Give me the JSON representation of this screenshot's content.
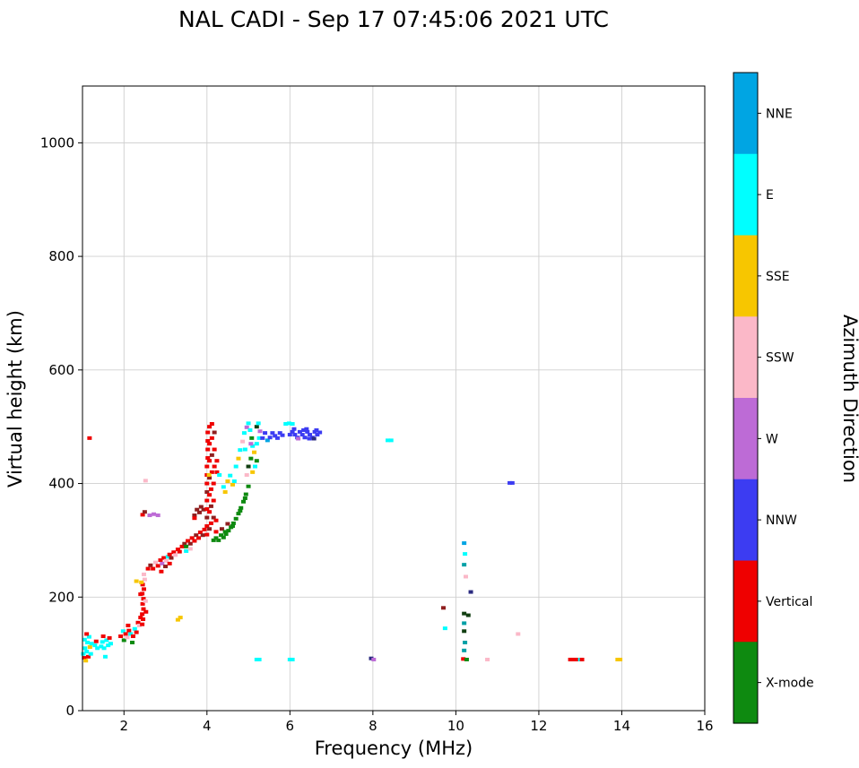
{
  "chart_data": {
    "type": "scatter",
    "title": "NAL CADI - Sep 17 07:45:06 2021 UTC",
    "xlabel": "Frequency (MHz)",
    "ylabel": "Virtual height (km)",
    "xlim": [
      1,
      16
    ],
    "ylim": [
      0,
      1100
    ],
    "xticks": [
      2,
      4,
      6,
      8,
      10,
      12,
      14,
      16
    ],
    "yticks": [
      0,
      200,
      400,
      600,
      800,
      1000
    ],
    "grid": true,
    "background": "#ffffff",
    "palette": {
      "NNE": "#00A5E3",
      "E": "#00FFFF",
      "SSE": "#F7C600",
      "SSW": "#FBB8C8",
      "W": "#BD6BD6",
      "NNW": "#3C3CF2",
      "Vertical": "#EF0000",
      "X-mode": "#0E8A10",
      "dark-red": "#8F1F1F",
      "dark-green": "#123F12",
      "teal": "#00A0A6",
      "indigo": "#2B2B80"
    },
    "legend": {
      "label": "Azimuth Direction",
      "position": "right-colorbar",
      "entries": [
        {
          "label": "NNE",
          "key": "NNE"
        },
        {
          "label": "E",
          "key": "E"
        },
        {
          "label": "SSE",
          "key": "SSE"
        },
        {
          "label": "SSW",
          "key": "SSW"
        },
        {
          "label": "W",
          "key": "W"
        },
        {
          "label": "NNW",
          "key": "NNW"
        },
        {
          "label": "Vertical",
          "key": "Vertical"
        },
        {
          "label": "X-mode",
          "key": "X-mode"
        }
      ]
    },
    "points_format": [
      "frequency_MHz",
      "virtual_height_km",
      "palette_key"
    ],
    "points": [
      [
        1.02,
        100,
        "E"
      ],
      [
        1.04,
        93,
        "Vertical"
      ],
      [
        1.06,
        110,
        "E"
      ],
      [
        1.08,
        88,
        "SSE"
      ],
      [
        1.1,
        104,
        "E"
      ],
      [
        1.12,
        120,
        "E"
      ],
      [
        1.14,
        95,
        "Vertical"
      ],
      [
        1.16,
        130,
        "E"
      ],
      [
        1.18,
        112,
        "SSE"
      ],
      [
        1.2,
        100,
        "E"
      ],
      [
        1.1,
        135,
        "Vertical"
      ],
      [
        1.22,
        118,
        "E"
      ],
      [
        1.05,
        125,
        "E"
      ],
      [
        1.17,
        480,
        "Vertical"
      ],
      [
        1.3,
        115,
        "E"
      ],
      [
        1.33,
        122,
        "Vertical"
      ],
      [
        1.36,
        110,
        "E"
      ],
      [
        1.45,
        113,
        "E"
      ],
      [
        1.48,
        121,
        "E"
      ],
      [
        1.52,
        110,
        "E"
      ],
      [
        1.5,
        131,
        "Vertical"
      ],
      [
        1.58,
        124,
        "E"
      ],
      [
        1.62,
        115,
        "E"
      ],
      [
        1.55,
        95,
        "E"
      ],
      [
        1.65,
        128,
        "Vertical"
      ],
      [
        1.68,
        118,
        "E"
      ],
      [
        1.92,
        131,
        "Vertical"
      ],
      [
        1.98,
        140,
        "E"
      ],
      [
        2.0,
        124,
        "X-mode"
      ],
      [
        2.04,
        135,
        "Vertical"
      ],
      [
        2.08,
        129,
        "SSW"
      ],
      [
        2.12,
        141,
        "Vertical"
      ],
      [
        2.16,
        135,
        "E"
      ],
      [
        2.1,
        150,
        "Vertical"
      ],
      [
        2.22,
        131,
        "Vertical"
      ],
      [
        2.26,
        144,
        "E"
      ],
      [
        2.2,
        120,
        "X-mode"
      ],
      [
        2.3,
        138,
        "Vertical"
      ],
      [
        2.34,
        155,
        "Vertical"
      ],
      [
        2.4,
        164,
        "Vertical"
      ],
      [
        2.37,
        150,
        "SSW"
      ],
      [
        2.3,
        228,
        "SSE"
      ],
      [
        2.44,
        152,
        "Vertical"
      ],
      [
        2.46,
        161,
        "Vertical"
      ],
      [
        2.44,
        170,
        "Vertical"
      ],
      [
        2.47,
        179,
        "Vertical"
      ],
      [
        2.45,
        188,
        "Vertical"
      ],
      [
        2.47,
        197,
        "Vertical"
      ],
      [
        2.44,
        206,
        "Vertical"
      ],
      [
        2.48,
        214,
        "Vertical"
      ],
      [
        2.45,
        222,
        "Vertical"
      ],
      [
        2.5,
        231,
        "SSW"
      ],
      [
        2.42,
        226,
        "SSE"
      ],
      [
        2.52,
        193,
        "SSW"
      ],
      [
        2.53,
        174,
        "Vertical"
      ],
      [
        2.4,
        205,
        "Vertical"
      ],
      [
        2.48,
        240,
        "SSW"
      ],
      [
        2.52,
        405,
        "SSW"
      ],
      [
        2.45,
        345,
        "Vertical"
      ],
      [
        2.5,
        350,
        "dark-red"
      ],
      [
        2.62,
        344,
        "W"
      ],
      [
        2.72,
        346,
        "W"
      ],
      [
        2.82,
        344,
        "W"
      ],
      [
        2.58,
        250,
        "Vertical"
      ],
      [
        2.64,
        256,
        "dark-red"
      ],
      [
        2.7,
        250,
        "Vertical"
      ],
      [
        2.76,
        261,
        "SSW"
      ],
      [
        2.82,
        255,
        "Vertical"
      ],
      [
        2.88,
        265,
        "Vertical"
      ],
      [
        2.92,
        259,
        "W"
      ],
      [
        2.96,
        269,
        "Vertical"
      ],
      [
        3.02,
        264,
        "SSW"
      ],
      [
        3.06,
        271,
        "E"
      ],
      [
        3.1,
        275,
        "Vertical"
      ],
      [
        3.14,
        269,
        "dark-red"
      ],
      [
        3.2,
        279,
        "Vertical"
      ],
      [
        3.24,
        274,
        "SSW"
      ],
      [
        3.3,
        284,
        "Vertical"
      ],
      [
        3.34,
        280,
        "Vertical"
      ],
      [
        3.0,
        254,
        "dark-red"
      ],
      [
        3.1,
        259,
        "Vertical"
      ],
      [
        2.9,
        245,
        "Vertical"
      ],
      [
        3.3,
        160,
        "SSE"
      ],
      [
        3.36,
        164,
        "SSE"
      ],
      [
        3.4,
        289,
        "Vertical"
      ],
      [
        3.46,
        294,
        "dark-red"
      ],
      [
        3.5,
        289,
        "X-mode"
      ],
      [
        3.54,
        299,
        "Vertical"
      ],
      [
        3.6,
        294,
        "dark-red"
      ],
      [
        3.64,
        304,
        "Vertical"
      ],
      [
        3.7,
        299,
        "Vertical"
      ],
      [
        3.74,
        309,
        "dark-red"
      ],
      [
        3.8,
        304,
        "Vertical"
      ],
      [
        3.84,
        314,
        "Vertical"
      ],
      [
        3.9,
        309,
        "dark-red"
      ],
      [
        3.94,
        319,
        "Vertical"
      ],
      [
        3.7,
        344,
        "dark-red"
      ],
      [
        3.76,
        354,
        "dark-red"
      ],
      [
        3.82,
        349,
        "dark-red"
      ],
      [
        3.86,
        359,
        "dark-red"
      ],
      [
        3.92,
        354,
        "dark-red"
      ],
      [
        3.7,
        339,
        "Vertical"
      ],
      [
        3.5,
        281,
        "E"
      ],
      [
        3.6,
        285,
        "SSW"
      ],
      [
        4.0,
        310,
        "Vertical"
      ],
      [
        4.0,
        325,
        "Vertical"
      ],
      [
        4.0,
        340,
        "dark-red"
      ],
      [
        4.0,
        355,
        "Vertical"
      ],
      [
        4.0,
        370,
        "Vertical"
      ],
      [
        4.0,
        385,
        "dark-red"
      ],
      [
        4.0,
        400,
        "Vertical"
      ],
      [
        4.0,
        415,
        "Vertical"
      ],
      [
        4.0,
        430,
        "Vertical"
      ],
      [
        4.02,
        445,
        "Vertical"
      ],
      [
        4.02,
        460,
        "Vertical"
      ],
      [
        4.02,
        475,
        "Vertical"
      ],
      [
        4.02,
        490,
        "Vertical"
      ],
      [
        4.06,
        320,
        "dark-red"
      ],
      [
        4.06,
        350,
        "Vertical"
      ],
      [
        4.06,
        380,
        "Vertical"
      ],
      [
        4.06,
        410,
        "dark-red"
      ],
      [
        4.06,
        440,
        "Vertical"
      ],
      [
        4.06,
        470,
        "Vertical"
      ],
      [
        4.06,
        500,
        "Vertical"
      ],
      [
        4.1,
        330,
        "Vertical"
      ],
      [
        4.1,
        360,
        "dark-red"
      ],
      [
        4.1,
        390,
        "Vertical"
      ],
      [
        4.12,
        420,
        "Vertical"
      ],
      [
        4.12,
        450,
        "dark-red"
      ],
      [
        4.12,
        480,
        "Vertical"
      ],
      [
        4.12,
        505,
        "Vertical"
      ],
      [
        4.16,
        340,
        "dark-red"
      ],
      [
        4.16,
        370,
        "Vertical"
      ],
      [
        4.16,
        400,
        "Vertical"
      ],
      [
        4.18,
        430,
        "Vertical"
      ],
      [
        4.18,
        460,
        "Vertical"
      ],
      [
        4.18,
        490,
        "dark-red"
      ],
      [
        4.22,
        315,
        "Vertical"
      ],
      [
        4.22,
        335,
        "Vertical"
      ],
      [
        4.24,
        420,
        "Vertical"
      ],
      [
        4.24,
        440,
        "Vertical"
      ],
      [
        4.05,
        415,
        "SSE"
      ],
      [
        4.3,
        415,
        "E"
      ],
      [
        4.16,
        300,
        "X-mode"
      ],
      [
        4.22,
        304,
        "X-mode"
      ],
      [
        4.28,
        300,
        "X-mode"
      ],
      [
        4.34,
        309,
        "X-mode"
      ],
      [
        4.4,
        305,
        "X-mode"
      ],
      [
        4.46,
        311,
        "X-mode"
      ],
      [
        4.52,
        317,
        "X-mode"
      ],
      [
        4.58,
        323,
        "X-mode"
      ],
      [
        4.64,
        330,
        "X-mode"
      ],
      [
        4.7,
        338,
        "X-mode"
      ],
      [
        4.76,
        347,
        "X-mode"
      ],
      [
        4.82,
        357,
        "X-mode"
      ],
      [
        4.88,
        368,
        "X-mode"
      ],
      [
        4.94,
        381,
        "X-mode"
      ],
      [
        5.0,
        395,
        "X-mode"
      ],
      [
        4.36,
        320,
        "dark-red"
      ],
      [
        4.5,
        329,
        "dark-red"
      ],
      [
        4.44,
        315,
        "X-mode"
      ],
      [
        4.62,
        325,
        "X-mode"
      ],
      [
        4.8,
        352,
        "X-mode"
      ],
      [
        4.92,
        374,
        "X-mode"
      ],
      [
        4.44,
        385,
        "SSE"
      ],
      [
        4.4,
        394,
        "E"
      ],
      [
        4.5,
        404,
        "SSE"
      ],
      [
        4.56,
        414,
        "E"
      ],
      [
        4.62,
        398,
        "SSE"
      ],
      [
        4.66,
        404,
        "E"
      ],
      [
        4.7,
        430,
        "E"
      ],
      [
        4.76,
        444,
        "SSE"
      ],
      [
        4.8,
        459,
        "E"
      ],
      [
        4.86,
        474,
        "SSW"
      ],
      [
        4.9,
        489,
        "E"
      ],
      [
        4.96,
        499,
        "W"
      ],
      [
        5.0,
        506,
        "E"
      ],
      [
        5.04,
        494,
        "E"
      ],
      [
        5.08,
        480,
        "X-mode"
      ],
      [
        5.1,
        466,
        "E"
      ],
      [
        5.14,
        455,
        "SSE"
      ],
      [
        5.2,
        470,
        "E"
      ],
      [
        5.2,
        500,
        "dark-green"
      ],
      [
        5.24,
        506,
        "E"
      ],
      [
        5.06,
        444,
        "X-mode"
      ],
      [
        5.0,
        430,
        "dark-green"
      ],
      [
        5.16,
        430,
        "E"
      ],
      [
        5.1,
        420,
        "SSE"
      ],
      [
        5.2,
        440,
        "X-mode"
      ],
      [
        4.96,
        415,
        "SSW"
      ],
      [
        5.06,
        470,
        "W"
      ],
      [
        4.92,
        460,
        "E"
      ],
      [
        5.26,
        480,
        "E"
      ],
      [
        5.28,
        492,
        "W"
      ],
      [
        5.34,
        480,
        "NNW"
      ],
      [
        5.4,
        489,
        "NNW"
      ],
      [
        5.46,
        476,
        "NNE"
      ],
      [
        5.52,
        481,
        "NNW"
      ],
      [
        5.58,
        489,
        "NNW"
      ],
      [
        5.64,
        484,
        "NNW"
      ],
      [
        5.7,
        480,
        "NNW"
      ],
      [
        5.76,
        489,
        "NNW"
      ],
      [
        5.82,
        485,
        "NNW"
      ],
      [
        5.9,
        505,
        "E"
      ],
      [
        5.98,
        506,
        "E"
      ],
      [
        6.06,
        505,
        "E"
      ],
      [
        6.0,
        486,
        "NNW"
      ],
      [
        6.06,
        491,
        "NNW"
      ],
      [
        6.12,
        486,
        "NNW"
      ],
      [
        6.18,
        481,
        "NNW"
      ],
      [
        6.24,
        491,
        "NNW"
      ],
      [
        6.3,
        486,
        "NNW"
      ],
      [
        6.36,
        481,
        "NNW"
      ],
      [
        6.42,
        491,
        "NNW"
      ],
      [
        6.48,
        486,
        "NNW"
      ],
      [
        6.54,
        481,
        "NNW"
      ],
      [
        6.6,
        491,
        "NNW"
      ],
      [
        6.66,
        486,
        "NNW"
      ],
      [
        6.72,
        490,
        "NNW"
      ],
      [
        6.2,
        479,
        "W"
      ],
      [
        6.33,
        494,
        "NNW"
      ],
      [
        6.47,
        479,
        "NNW"
      ],
      [
        6.58,
        479,
        "indigo"
      ],
      [
        6.64,
        494,
        "NNW"
      ],
      [
        6.1,
        496,
        "NNW"
      ],
      [
        6.4,
        496,
        "NNW"
      ],
      [
        8.36,
        476,
        "E"
      ],
      [
        8.44,
        476,
        "E"
      ],
      [
        11.3,
        401,
        "NNW"
      ],
      [
        11.36,
        401,
        "NNW"
      ],
      [
        9.7,
        181,
        "dark-red"
      ],
      [
        9.74,
        145,
        "E"
      ],
      [
        10.36,
        209,
        "indigo"
      ],
      [
        11.5,
        135,
        "SSW"
      ],
      [
        10.2,
        295,
        "NNE"
      ],
      [
        10.22,
        276,
        "E"
      ],
      [
        10.2,
        257,
        "teal"
      ],
      [
        10.24,
        236,
        "SSW"
      ],
      [
        10.2,
        171,
        "dark-green"
      ],
      [
        10.3,
        168,
        "dark-green"
      ],
      [
        10.2,
        154,
        "teal"
      ],
      [
        10.22,
        120,
        "teal"
      ],
      [
        10.2,
        140,
        "dark-green"
      ],
      [
        10.18,
        91,
        "Vertical"
      ],
      [
        10.26,
        90,
        "X-mode"
      ],
      [
        10.2,
        106,
        "teal"
      ],
      [
        5.2,
        90,
        "E"
      ],
      [
        5.26,
        90,
        "E"
      ],
      [
        6.0,
        90,
        "E"
      ],
      [
        6.06,
        90,
        "E"
      ],
      [
        7.96,
        92,
        "indigo"
      ],
      [
        8.02,
        90,
        "W"
      ],
      [
        10.76,
        90,
        "SSW"
      ],
      [
        12.76,
        90,
        "Vertical"
      ],
      [
        12.82,
        90,
        "Vertical"
      ],
      [
        12.88,
        90,
        "Vertical"
      ],
      [
        12.94,
        90,
        "Vertical"
      ],
      [
        13.0,
        90,
        "E"
      ],
      [
        13.04,
        90,
        "Vertical"
      ],
      [
        13.9,
        90,
        "SSE"
      ],
      [
        13.96,
        90,
        "SSE"
      ]
    ]
  }
}
